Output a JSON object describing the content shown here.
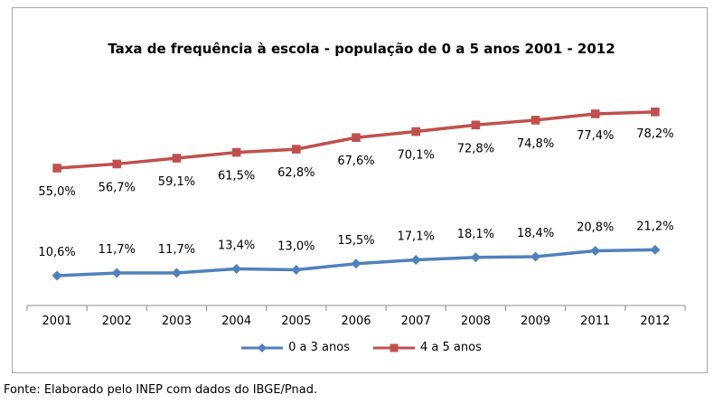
{
  "chart_data": {
    "type": "line",
    "title": "Taxa de frequência à escola - população de 0 a 5 anos 2001 - 2012",
    "categories": [
      "2001",
      "2002",
      "2003",
      "2004",
      "2005",
      "2006",
      "2007",
      "2008",
      "2009",
      "2011",
      "2012"
    ],
    "series": [
      {
        "name": "0 a 3 anos",
        "color": "#4f81bd",
        "marker": "diamond",
        "values": [
          10.6,
          11.7,
          11.7,
          13.4,
          13.0,
          15.5,
          17.1,
          18.1,
          18.4,
          20.8,
          21.2
        ],
        "labels": [
          "10,6%",
          "11,7%",
          "11,7%",
          "13,4%",
          "13,0%",
          "15,5%",
          "17,1%",
          "18,1%",
          "18,4%",
          "20,8%",
          "21,2%"
        ]
      },
      {
        "name": "4 a 5 anos",
        "color": "#c0504d",
        "marker": "square",
        "values": [
          55.0,
          56.7,
          59.1,
          61.5,
          62.8,
          67.6,
          70.1,
          72.8,
          74.8,
          77.4,
          78.2
        ],
        "labels": [
          "55,0%",
          "56,7%",
          "59,1%",
          "61,5%",
          "62,8%",
          "67,6%",
          "70,1%",
          "72,8%",
          "74,8%",
          "77,4%",
          "78,2%"
        ]
      }
    ],
    "ylim": [
      0,
      80
    ],
    "grid": false,
    "legend_position": "bottom"
  },
  "source_note": "Fonte: Elaborado pelo INEP com dados do IBGE/Pnad."
}
